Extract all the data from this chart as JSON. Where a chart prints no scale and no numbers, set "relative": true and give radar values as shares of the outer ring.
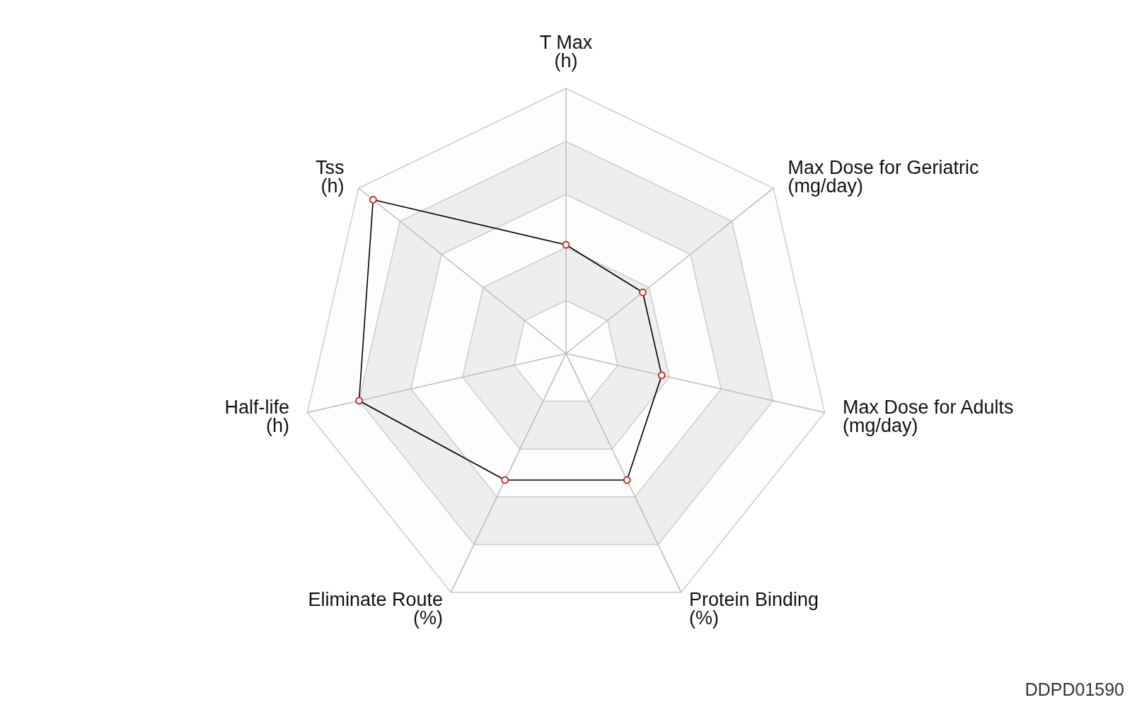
{
  "chart_data": {
    "type": "radar",
    "categories": [
      "T Max\n(h)",
      "Max Dose for Geriatric\n(mg/day)",
      "Max Dose for Adults\n(mg/day)",
      "Protein Binding\n(%)",
      "Eliminate Route\n(%)",
      "Half-life\n(h)",
      "Tss\n(h)"
    ],
    "series": [
      {
        "color": "#000000",
        "values": [
          0.41,
          0.37,
          0.37,
          0.53,
          0.53,
          0.8,
          0.93
        ]
      }
    ],
    "relative": true,
    "grid": true,
    "marker": "circle",
    "line_style": "solid",
    "annotations": [
      "DDPD01590"
    ]
  }
}
